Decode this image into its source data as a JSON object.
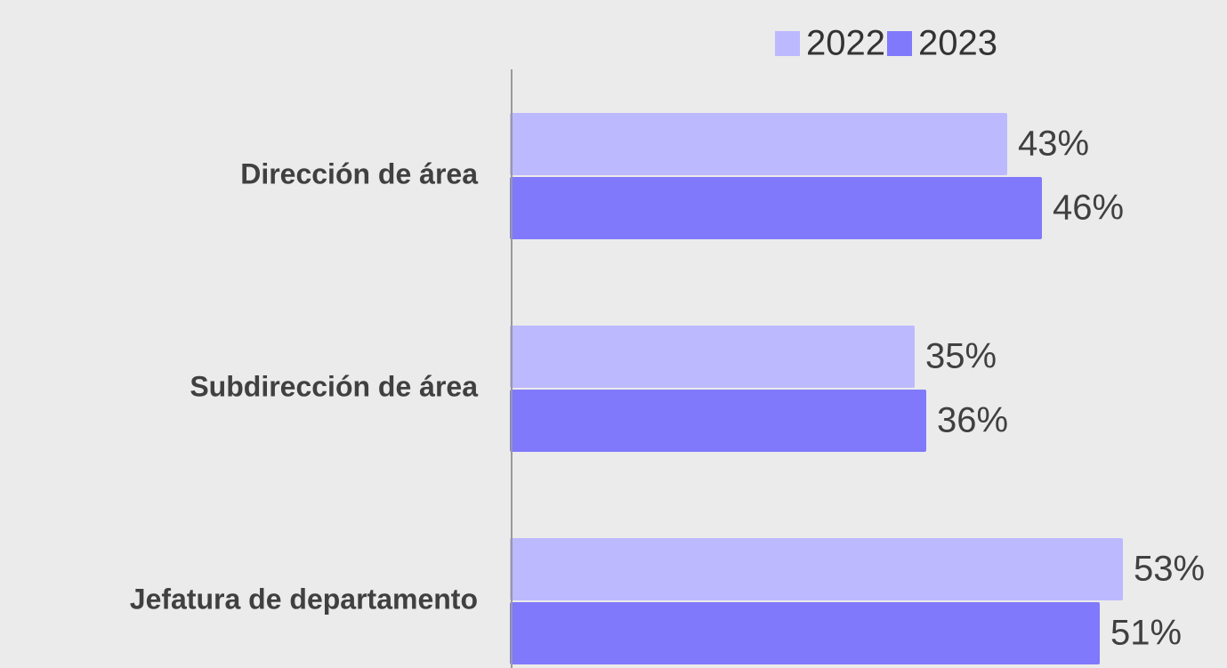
{
  "chart_data": {
    "type": "bar",
    "orientation": "horizontal",
    "categories": [
      "Dirección de área",
      "Subdirección de área",
      "Jefatura de departamento"
    ],
    "series": [
      {
        "name": "2022",
        "color": "#bdb9ff",
        "values": [
          43,
          35,
          53
        ],
        "value_labels": [
          "43%",
          "35%",
          "53%"
        ]
      },
      {
        "name": "2023",
        "color": "#8079fb",
        "values": [
          46,
          36,
          51
        ],
        "value_labels": [
          "46%",
          "36%",
          "51%"
        ]
      }
    ],
    "xlim": [
      0,
      62
    ],
    "legend": "top-right"
  }
}
